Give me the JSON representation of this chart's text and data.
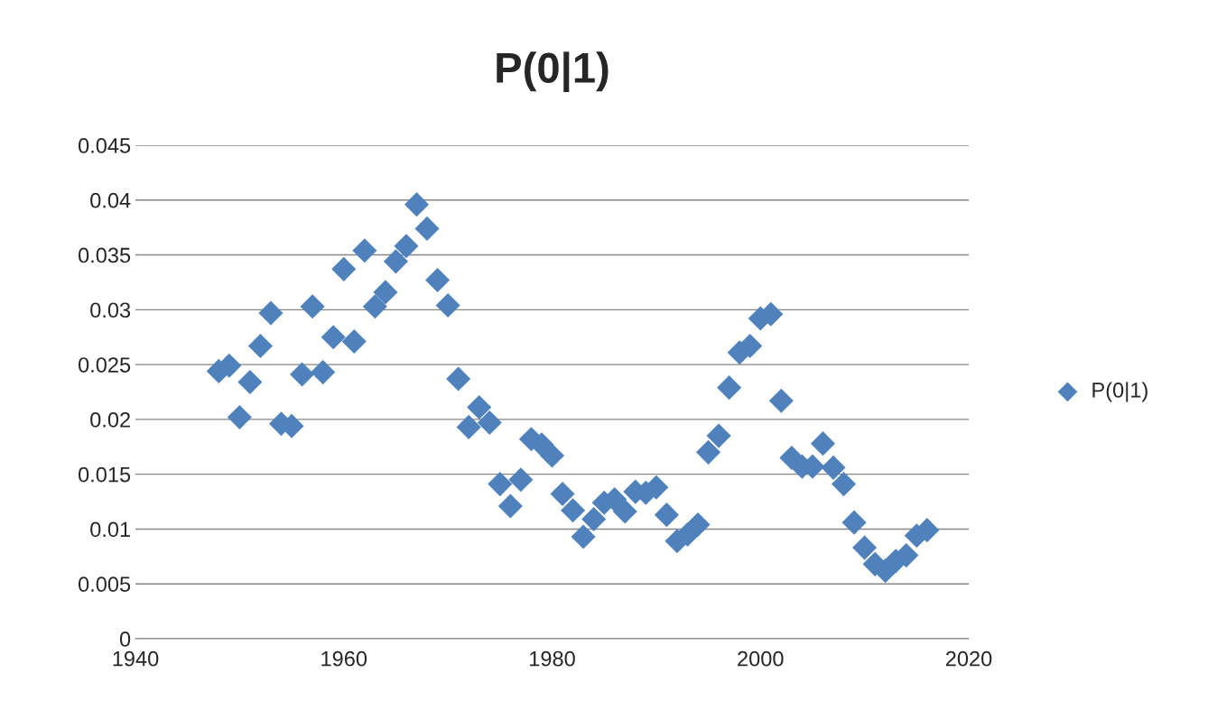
{
  "chart_data": {
    "type": "scatter",
    "title": "P(0|1)",
    "xlim": [
      1940,
      2020
    ],
    "xticks": [
      1940,
      1960,
      1980,
      2000,
      2020
    ],
    "ylim": [
      0,
      0.045
    ],
    "yticks": [
      {
        "value": 0,
        "label": "0"
      },
      0.005,
      {
        "value": 0.01,
        "label": "0.01"
      },
      0.015,
      {
        "value": 0.02,
        "label": "0.02"
      },
      0.025,
      {
        "value": 0.03,
        "label": "0.03"
      },
      0.035,
      {
        "value": 0.04,
        "label": "0.04"
      },
      0.045
    ],
    "grid": "y",
    "legend": "right",
    "marker": "diamond",
    "series": [
      {
        "name": "P(0|1)",
        "color": "#4f81bd",
        "x": [
          1948,
          1949,
          1950,
          1951,
          1952,
          1953,
          1954,
          1955,
          1956,
          1957,
          1958,
          1959,
          1960,
          1961,
          1962,
          1963,
          1964,
          1965,
          1966,
          1967,
          1968,
          1969,
          1970,
          1971,
          1972,
          1973,
          1974,
          1975,
          1976,
          1977,
          1978,
          1979,
          1980,
          1981,
          1982,
          1983,
          1984,
          1985,
          1986,
          1987,
          1988,
          1989,
          1990,
          1991,
          1992,
          1993,
          1994,
          1995,
          1996,
          1997,
          1998,
          1999,
          2000,
          2001,
          2002,
          2003,
          2004,
          2005,
          2006,
          2007,
          2008,
          2009,
          2010,
          2011,
          2012,
          2013,
          2014,
          2015,
          2016
        ],
        "values": [
          0.0244,
          0.0249,
          0.0202,
          0.0234,
          0.0267,
          0.0297,
          0.0196,
          0.0194,
          0.0241,
          0.0303,
          0.0243,
          0.0275,
          0.0337,
          0.0271,
          0.0354,
          0.0303,
          0.0316,
          0.0344,
          0.0358,
          0.0396,
          0.0374,
          0.0327,
          0.0304,
          0.0237,
          0.0193,
          0.0211,
          0.0197,
          0.0141,
          0.0121,
          0.0145,
          0.0182,
          0.0177,
          0.0167,
          0.0132,
          0.0117,
          0.0093,
          0.0109,
          0.0124,
          0.0127,
          0.0116,
          0.0134,
          0.0133,
          0.0138,
          0.0113,
          0.0089,
          0.0095,
          0.0104,
          0.017,
          0.0185,
          0.0229,
          0.0261,
          0.0267,
          0.0292,
          0.0296,
          0.0217,
          0.0165,
          0.0157,
          0.0157,
          0.0178,
          0.0156,
          0.0141,
          0.0106,
          0.0083,
          0.0068,
          0.0062,
          0.0071,
          0.0076,
          0.0094,
          0.0099
        ]
      }
    ]
  }
}
